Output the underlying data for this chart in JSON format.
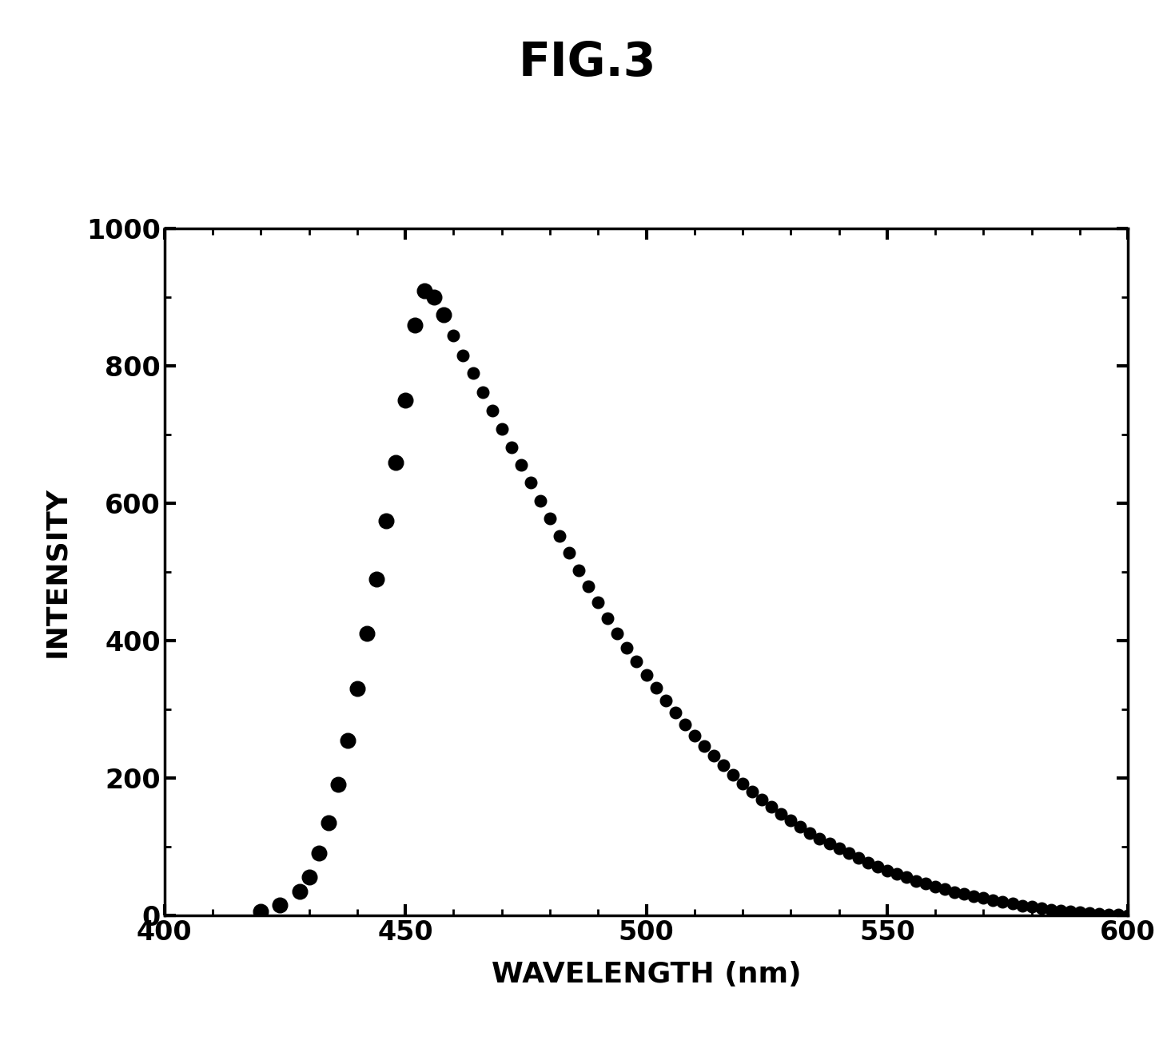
{
  "title": "FIG.3",
  "xlabel": "WAVELENGTH (nm)",
  "ylabel": "INTENSITY",
  "xlim": [
    400,
    600
  ],
  "ylim": [
    0,
    1000
  ],
  "xticks": [
    400,
    450,
    500,
    550,
    600
  ],
  "yticks": [
    0,
    200,
    400,
    600,
    800,
    1000
  ],
  "background_color": "#ffffff",
  "dot_color": "#000000",
  "title_fontsize": 42,
  "label_fontsize": 26,
  "tick_fontsize": 24,
  "data_points_rise": [
    [
      420,
      5
    ],
    [
      424,
      15
    ],
    [
      428,
      35
    ],
    [
      430,
      55
    ],
    [
      432,
      90
    ],
    [
      434,
      135
    ],
    [
      436,
      190
    ],
    [
      438,
      255
    ],
    [
      440,
      330
    ],
    [
      442,
      410
    ],
    [
      444,
      490
    ],
    [
      446,
      575
    ],
    [
      448,
      660
    ],
    [
      450,
      750
    ],
    [
      452,
      860
    ],
    [
      454,
      910
    ],
    [
      456,
      900
    ],
    [
      458,
      875
    ]
  ],
  "data_points_fall": [
    [
      460,
      845
    ],
    [
      462,
      815
    ],
    [
      464,
      790
    ],
    [
      466,
      762
    ],
    [
      468,
      735
    ],
    [
      470,
      708
    ],
    [
      472,
      682
    ],
    [
      474,
      656
    ],
    [
      476,
      630
    ],
    [
      478,
      604
    ],
    [
      480,
      578
    ],
    [
      482,
      553
    ],
    [
      484,
      528
    ],
    [
      486,
      503
    ],
    [
      488,
      479
    ],
    [
      490,
      456
    ],
    [
      492,
      433
    ],
    [
      494,
      411
    ],
    [
      496,
      390
    ],
    [
      498,
      370
    ],
    [
      500,
      350
    ],
    [
      502,
      331
    ],
    [
      504,
      313
    ],
    [
      506,
      295
    ],
    [
      508,
      278
    ],
    [
      510,
      262
    ],
    [
      512,
      247
    ],
    [
      514,
      232
    ],
    [
      516,
      218
    ],
    [
      518,
      205
    ],
    [
      520,
      192
    ],
    [
      522,
      180
    ],
    [
      524,
      169
    ],
    [
      526,
      158
    ],
    [
      528,
      148
    ],
    [
      530,
      138
    ],
    [
      532,
      129
    ],
    [
      534,
      120
    ],
    [
      536,
      112
    ],
    [
      538,
      104
    ],
    [
      540,
      97
    ],
    [
      542,
      90
    ],
    [
      544,
      83
    ],
    [
      546,
      77
    ],
    [
      548,
      71
    ],
    [
      550,
      65
    ],
    [
      552,
      60
    ],
    [
      554,
      55
    ],
    [
      556,
      50
    ],
    [
      558,
      46
    ],
    [
      560,
      42
    ],
    [
      562,
      38
    ],
    [
      564,
      34
    ],
    [
      566,
      31
    ],
    [
      568,
      28
    ],
    [
      570,
      25
    ],
    [
      572,
      22
    ],
    [
      574,
      19
    ],
    [
      576,
      17
    ],
    [
      578,
      14
    ],
    [
      580,
      12
    ],
    [
      582,
      10
    ],
    [
      584,
      8
    ],
    [
      586,
      7
    ],
    [
      588,
      5
    ],
    [
      590,
      4
    ],
    [
      592,
      3
    ],
    [
      594,
      2
    ],
    [
      596,
      1
    ],
    [
      598,
      1
    ],
    [
      600,
      0
    ]
  ]
}
